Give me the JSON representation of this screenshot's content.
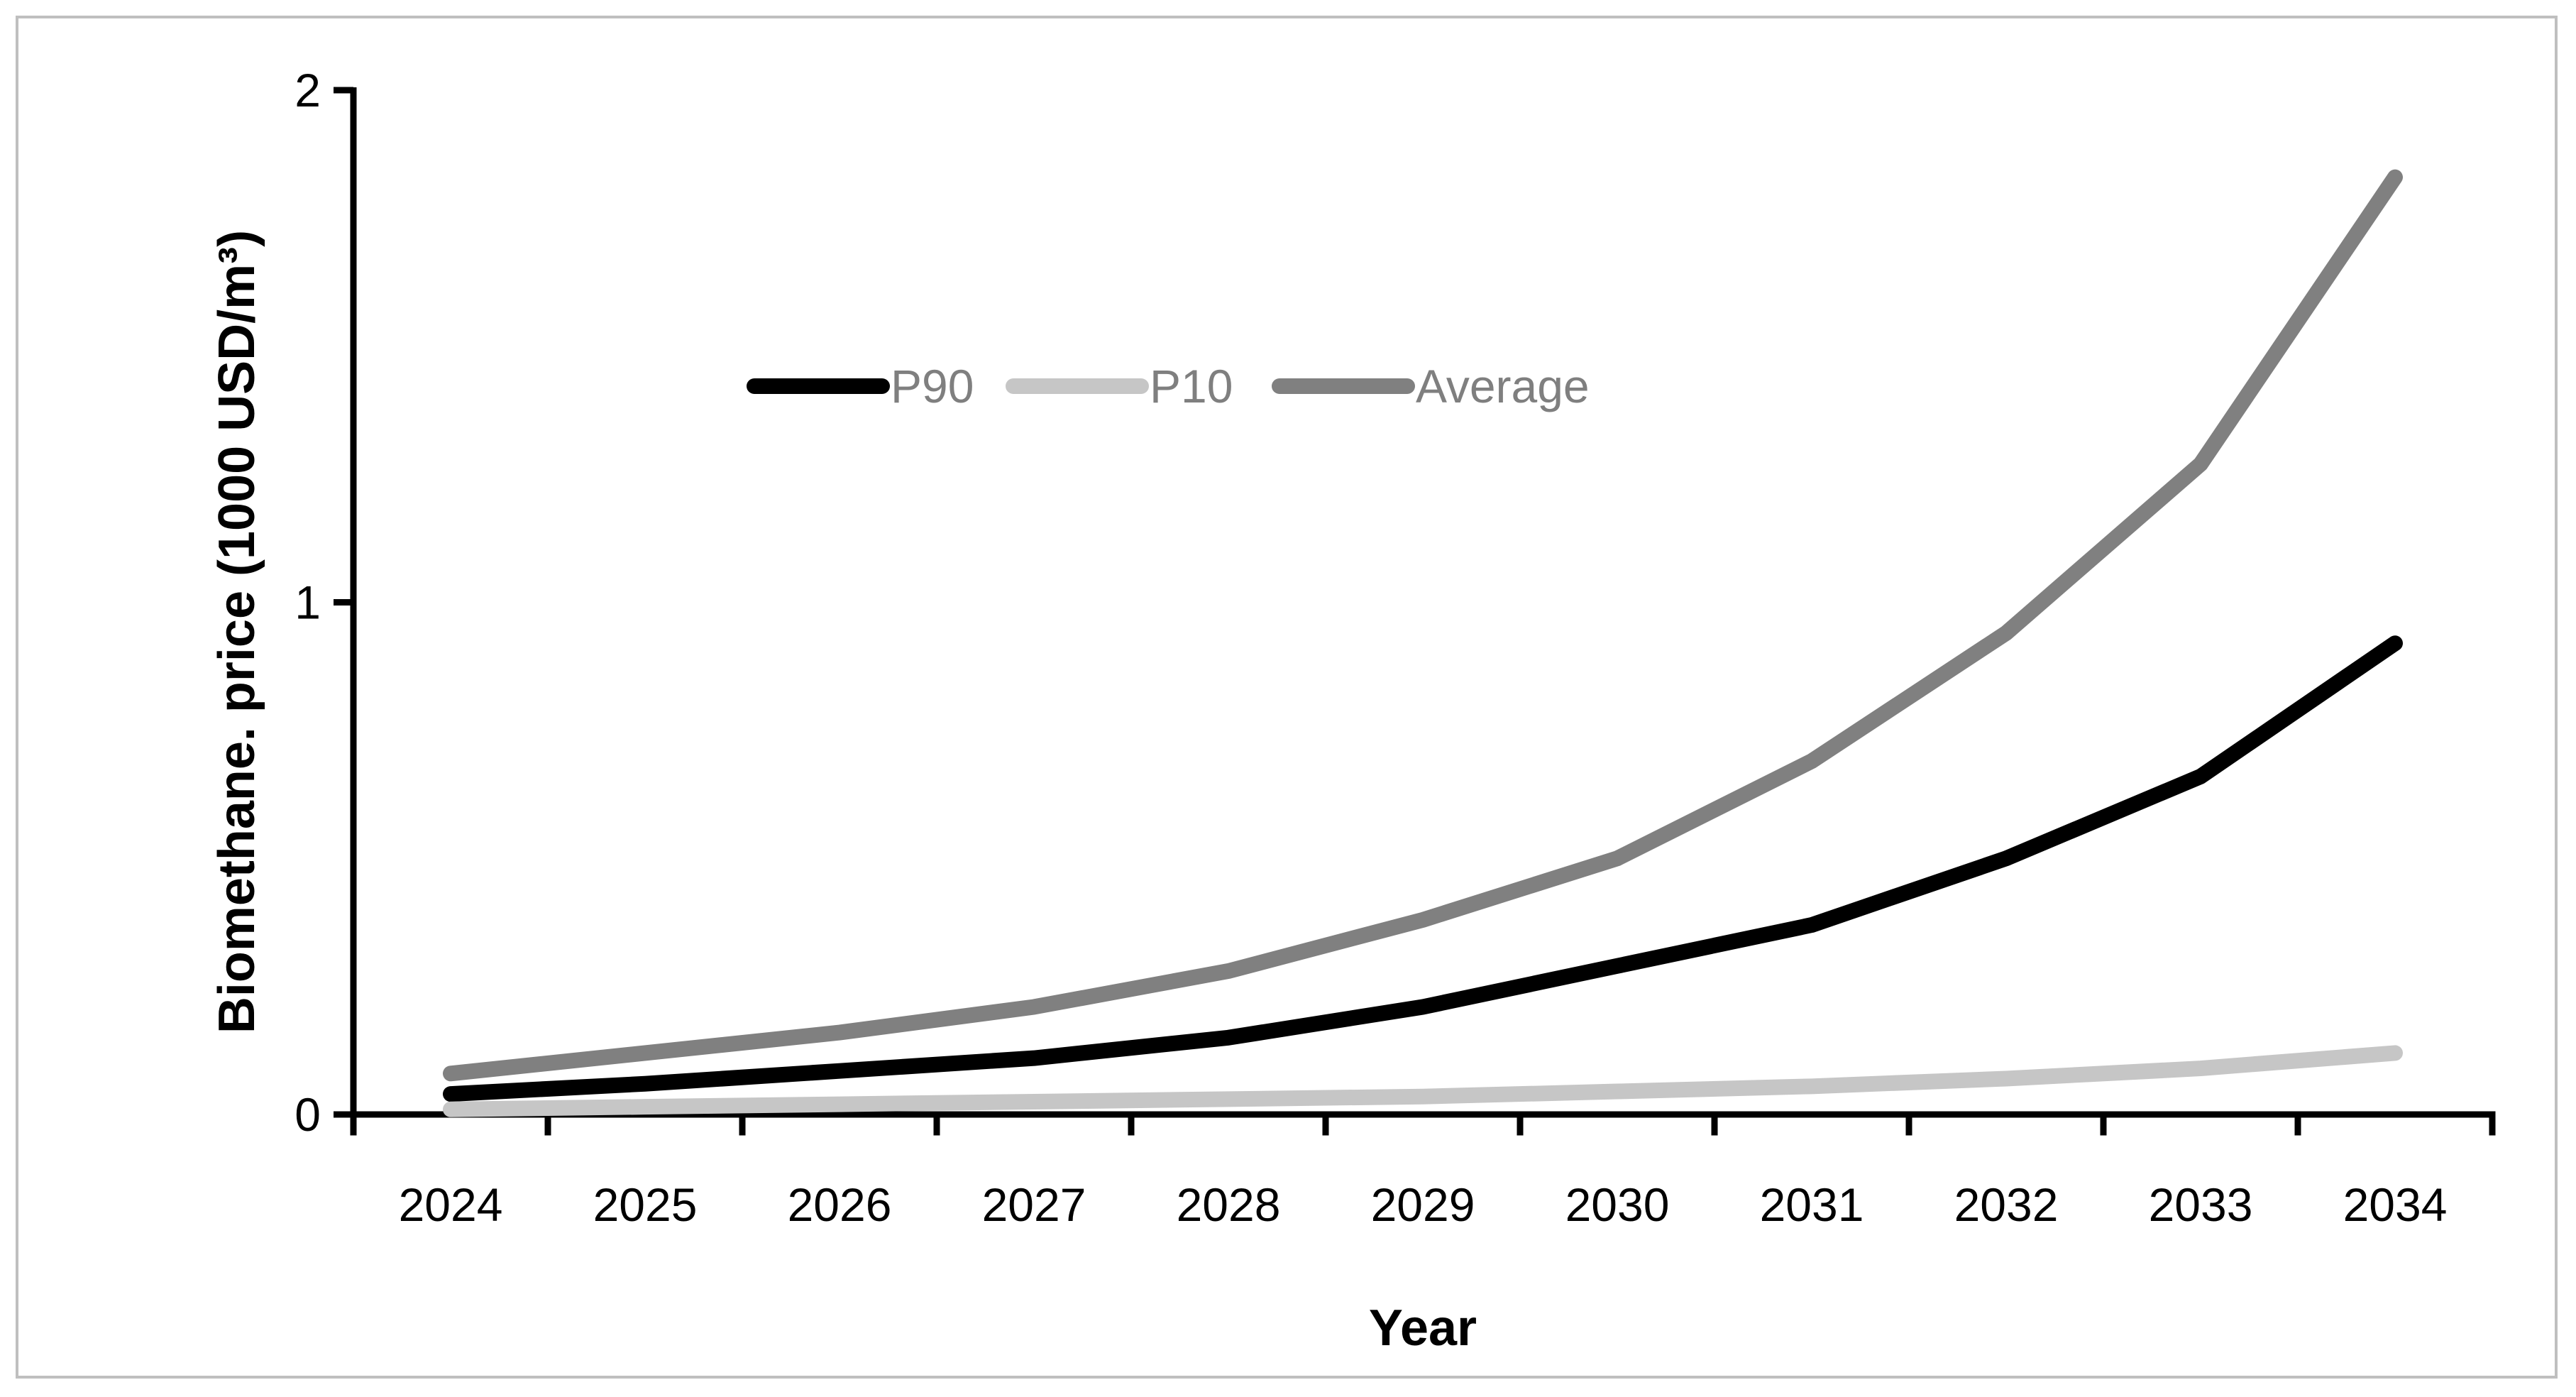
{
  "chart_data": {
    "type": "line",
    "title": "",
    "xlabel": "Year",
    "ylabel": "Biomethane. price (1000 USD/m³)",
    "categories": [
      "2024",
      "2025",
      "2026",
      "2027",
      "2028",
      "2029",
      "2030",
      "2031",
      "2032",
      "2033",
      "2034"
    ],
    "y_tick_labels": [
      "0",
      "1",
      "2"
    ],
    "y_tick_values": [
      0,
      1,
      2
    ],
    "ylim": [
      0,
      2
    ],
    "grid": false,
    "legend_position": "top-center-inside",
    "series": [
      {
        "name": "P90",
        "color": "#000000",
        "values": [
          0.04,
          0.06,
          0.085,
          0.11,
          0.15,
          0.21,
          0.29,
          0.37,
          0.5,
          0.66,
          0.92
        ]
      },
      {
        "name": "P10",
        "color": "#C6C6C6",
        "values": [
          0.01,
          0.015,
          0.02,
          0.025,
          0.03,
          0.035,
          0.045,
          0.055,
          0.07,
          0.09,
          0.12
        ]
      },
      {
        "name": "Average",
        "color": "#808080",
        "values": [
          0.08,
          0.12,
          0.16,
          0.21,
          0.28,
          0.38,
          0.5,
          0.69,
          0.94,
          1.27,
          1.83
        ]
      }
    ],
    "colors": {
      "axis": "#000000",
      "tick_label": "#000000",
      "axis_title": "#000000",
      "legend_text": "#7F7F7F",
      "frame_border": "#BFBFBF",
      "background": "#FFFFFF"
    }
  }
}
